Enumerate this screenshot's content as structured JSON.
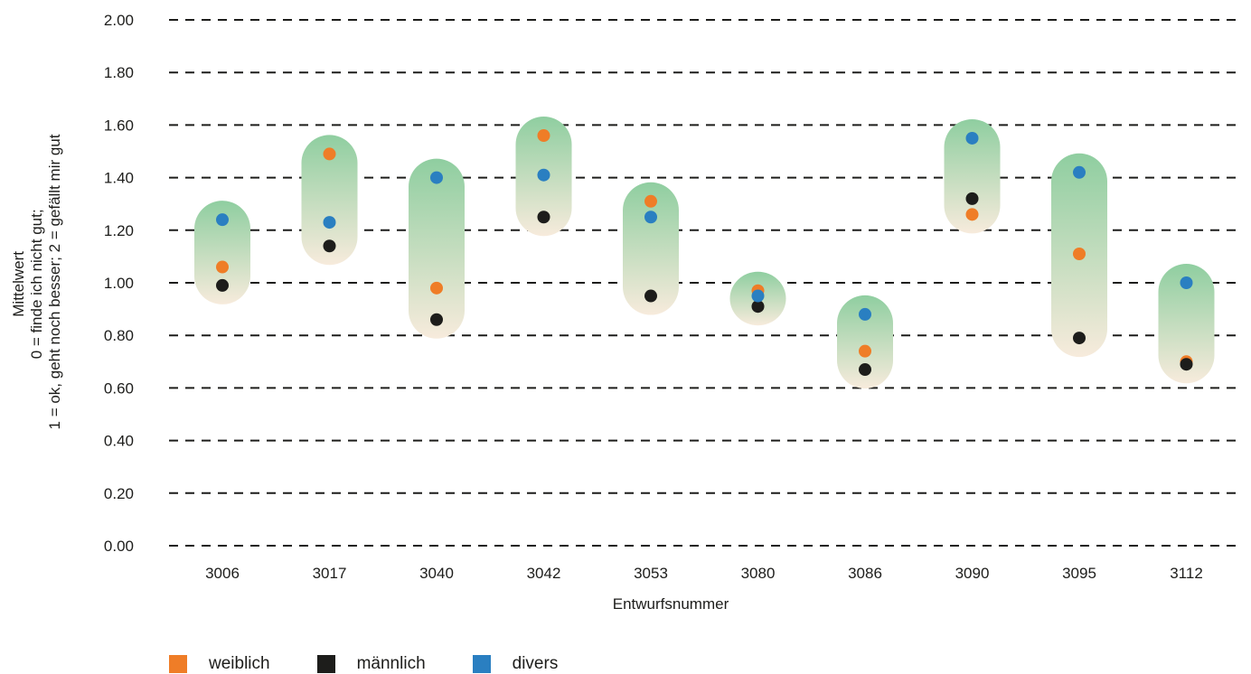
{
  "chart_data": {
    "type": "scatter",
    "title": "",
    "xlabel": "Entwurfsnummer",
    "ylabel": [
      "Mittelwert",
      "0 = finde ich nicht gut;",
      "1 = ok, geht noch besser; 2 = gefällt mir gut"
    ],
    "ylim": [
      0,
      2
    ],
    "yticks": [
      "0.00",
      "0.20",
      "0.40",
      "0.60",
      "0.80",
      "1.00",
      "1.20",
      "1.40",
      "1.60",
      "1.80",
      "2.00"
    ],
    "grid": "dashed horizontal",
    "legend_position": "bottom-left",
    "categories": [
      "3006",
      "3017",
      "3040",
      "3042",
      "3053",
      "3080",
      "3086",
      "3090",
      "3095",
      "3112"
    ],
    "series": [
      {
        "name": "weiblich",
        "color": "#ef7d27",
        "values": [
          1.06,
          1.49,
          0.98,
          1.56,
          1.31,
          0.97,
          0.74,
          1.26,
          1.11,
          0.7
        ]
      },
      {
        "name": "männlich",
        "color": "#1d1d1b",
        "values": [
          0.99,
          1.14,
          0.86,
          1.25,
          0.95,
          0.91,
          0.67,
          1.32,
          0.79,
          0.69
        ]
      },
      {
        "name": "divers",
        "color": "#2a7fc1",
        "values": [
          1.24,
          1.23,
          1.4,
          1.41,
          1.25,
          0.95,
          0.88,
          1.55,
          1.42,
          1.0
        ]
      }
    ],
    "range_band_colors": {
      "top": "#8fcea0",
      "bottom": "#f7ebdc"
    }
  }
}
